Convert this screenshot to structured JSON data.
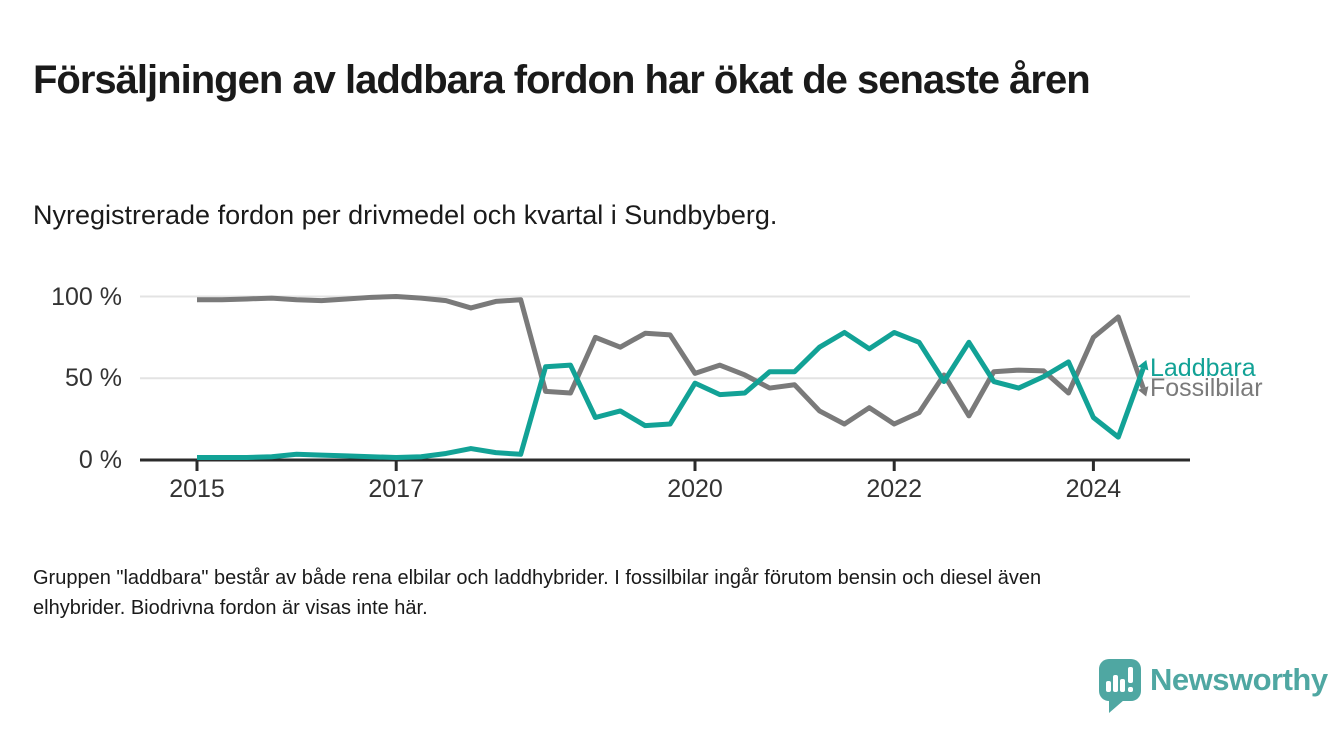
{
  "header": {
    "title": "Försäljningen av laddbara fordon har ökat de senaste åren",
    "subtitle": "Nyregistrerade fordon per drivmedel och kvartal i Sundbyberg."
  },
  "chart_data": {
    "type": "line",
    "x": [
      "2015Q1",
      "2015Q2",
      "2015Q3",
      "2015Q4",
      "2016Q1",
      "2016Q2",
      "2016Q3",
      "2016Q4",
      "2017Q1",
      "2017Q2",
      "2017Q3",
      "2017Q4",
      "2018Q1",
      "2018Q2",
      "2018Q3",
      "2018Q4",
      "2019Q1",
      "2019Q2",
      "2019Q3",
      "2019Q4",
      "2020Q1",
      "2020Q2",
      "2020Q3",
      "2020Q4",
      "2021Q1",
      "2021Q2",
      "2021Q3",
      "2021Q4",
      "2022Q1",
      "2022Q2",
      "2022Q3",
      "2022Q4",
      "2023Q1",
      "2023Q2",
      "2023Q3",
      "2023Q4",
      "2024Q1",
      "2024Q2",
      "2024Q3"
    ],
    "series": [
      {
        "name": "Laddbara",
        "color": "#12a296",
        "values": [
          1.5,
          1.5,
          1.5,
          2,
          3.5,
          3,
          2.5,
          2,
          1.5,
          2,
          4,
          7,
          4.5,
          3.5,
          57,
          58,
          26,
          30,
          21,
          22,
          47,
          40,
          41,
          54,
          54,
          69,
          78,
          68,
          78,
          72,
          48,
          72,
          48,
          44,
          51,
          60,
          26,
          14,
          56
        ]
      },
      {
        "name": "Fossilbilar",
        "color": "#7a7a7a",
        "values": [
          98,
          98,
          98.5,
          99,
          98,
          97.5,
          98.5,
          99.5,
          100,
          99,
          97.5,
          93,
          97,
          98,
          42,
          41,
          75,
          69,
          77.5,
          76.5,
          53,
          58,
          52,
          44,
          46,
          30,
          22,
          32,
          22,
          29,
          52,
          27,
          54,
          55,
          54.5,
          41,
          75,
          87.5,
          44
        ]
      }
    ],
    "x_ticks": [
      {
        "label": "2015",
        "index": 0
      },
      {
        "label": "2017",
        "index": 8
      },
      {
        "label": "2020",
        "index": 20
      },
      {
        "label": "2022",
        "index": 28
      },
      {
        "label": "2024",
        "index": 36
      }
    ],
    "y_ticks": [
      {
        "label": "100 %",
        "value": 100
      },
      {
        "label": "50 %",
        "value": 50
      },
      {
        "label": "0 %",
        "value": 0
      }
    ],
    "ylim": [
      0,
      100
    ],
    "unit": "%",
    "grid": "horizontal",
    "legend_position": "right-end-labels",
    "axis_color": "#2b2b2b",
    "gridline_color": "#e3e3e3"
  },
  "footnote": {
    "line1": "Gruppen \"laddbara\" består av både rena elbilar och laddhybrider. I fossilbilar ingår förutom bensin och diesel även",
    "line2": "elhybrider. Biodrivna fordon är visas inte här."
  },
  "branding": {
    "name": "Newsworthy",
    "color": "#4fa7a2",
    "icon": "newsworthy-chart-bubble-icon"
  }
}
